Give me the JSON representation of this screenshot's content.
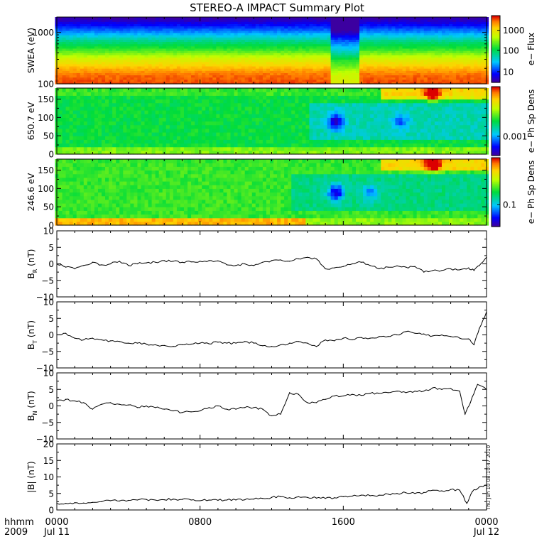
{
  "title": "STEREO-A IMPACT Summary Plot",
  "stamp": "Thu Jun 10 08:10:47 2010",
  "time_axis": {
    "corner_top": "hhmm",
    "corner_bottom": "2009",
    "ticks": [
      {
        "hhmm": "0000",
        "date": "Jul 11",
        "hours": 0
      },
      {
        "hhmm": "0800",
        "date": "",
        "hours": 8
      },
      {
        "hhmm": "1600",
        "date": "",
        "hours": 16
      },
      {
        "hhmm": "0000",
        "date": "Jul 12",
        "hours": 24
      }
    ]
  },
  "panels": {
    "swea": {
      "ylabel": "SWEA (eV)",
      "yticks": [
        "1000",
        "100"
      ],
      "cbar_label": "e− Flux",
      "cbar_ticks": [
        "1000",
        "100",
        "10"
      ]
    },
    "pad1": {
      "ylabel": "650.7 eV",
      "yticks": [
        "150",
        "100",
        "50",
        "0"
      ],
      "cbar_label": "e− Ph Sp Dens",
      "cbar_ticks": [
        "0.001"
      ]
    },
    "pad2": {
      "ylabel": "246.6 eV",
      "yticks": [
        "150",
        "100",
        "50",
        "0"
      ],
      "cbar_label": "e− Ph Sp Dens",
      "cbar_ticks": [
        "0.1"
      ]
    },
    "br": {
      "ylabel_main": "B",
      "ylabel_sub": "R",
      "ylabel_unit": " (nT)",
      "yticks": [
        "10",
        "5",
        "0",
        "−5",
        "−10"
      ]
    },
    "bt": {
      "ylabel_main": "B",
      "ylabel_sub": "T",
      "ylabel_unit": " (nT)",
      "yticks": [
        "10",
        "5",
        "0",
        "−5",
        "−10"
      ]
    },
    "bn": {
      "ylabel_main": "B",
      "ylabel_sub": "N",
      "ylabel_unit": " (nT)",
      "yticks": [
        "10",
        "5",
        "0",
        "−5",
        "−10"
      ]
    },
    "bmag": {
      "ylabel": "|B| (nT)",
      "yticks": [
        "20",
        "15",
        "10",
        "5",
        "0"
      ]
    }
  },
  "chart_data": [
    {
      "type": "heatmap",
      "name": "SWEA electron flux spectrogram",
      "xlabel": "",
      "ylabel": "SWEA (eV)",
      "ylim": [
        100,
        2000
      ],
      "yscale": "log",
      "colorbar": {
        "label": "e− Flux",
        "scale": "log",
        "range": [
          3,
          3000
        ]
      },
      "band_levels": [
        [
          100,
          2200
        ],
        [
          150,
          1800
        ],
        [
          200,
          1100
        ],
        [
          300,
          500
        ],
        [
          450,
          150
        ],
        [
          700,
          55
        ],
        [
          1000,
          18
        ],
        [
          1500,
          6
        ],
        [
          2000,
          3
        ]
      ],
      "features": [
        {
          "t_start": 15.3,
          "t_end": 16.8,
          "note": "flux dip"
        }
      ]
    },
    {
      "type": "heatmap",
      "name": "Pitch angle distribution 650.7 eV",
      "ylabel": "650.7 eV",
      "ylim": [
        0,
        180
      ],
      "colorbar": {
        "label": "e− Ph Sp Dens",
        "scale": "log",
        "ticks": [
          "0.001"
        ]
      },
      "features": [
        {
          "t": 15.6,
          "pa": 90,
          "level": "min"
        },
        {
          "t": 19.2,
          "pa": 90,
          "level": "low"
        },
        {
          "t": 21.0,
          "pa": 170,
          "level": "max"
        }
      ]
    },
    {
      "type": "heatmap",
      "name": "Pitch angle distribution 246.6 eV",
      "ylabel": "246.6 eV",
      "ylim": [
        0,
        180
      ],
      "colorbar": {
        "label": "e− Ph Sp Dens",
        "scale": "log",
        "ticks": [
          "0.1"
        ]
      },
      "features": [
        {
          "t": 15.6,
          "pa": 90,
          "level": "min"
        },
        {
          "t": 17.5,
          "pa": 90,
          "level": "low"
        },
        {
          "t": 21.0,
          "pa": 170,
          "level": "max"
        }
      ]
    },
    {
      "type": "line",
      "name": "B_R",
      "ylabel": "B_R (nT)",
      "ylim": [
        -10,
        10
      ],
      "xlim": [
        0,
        24
      ],
      "x": [
        0,
        0.5,
        1,
        1.5,
        2,
        2.5,
        3,
        3.5,
        4,
        4.5,
        5,
        5.5,
        6,
        6.5,
        7,
        7.5,
        8,
        8.5,
        9,
        9.5,
        10,
        10.5,
        11,
        11.5,
        12,
        12.5,
        13,
        13.5,
        14,
        14.5,
        15,
        15.5,
        16,
        16.5,
        17,
        17.5,
        18,
        18.5,
        19,
        19.5,
        20,
        20.5,
        21,
        21.5,
        22,
        22.5,
        23,
        23.3,
        23.6,
        24
      ],
      "y": [
        0,
        -1,
        -1.5,
        -0.5,
        0.5,
        -0.3,
        0,
        0.8,
        -0.5,
        0,
        0.3,
        0.5,
        1,
        0.8,
        0.5,
        0.6,
        0.8,
        1,
        0.9,
        -0.3,
        -0.5,
        0,
        -0.5,
        0.5,
        1,
        1.2,
        0.8,
        1.5,
        2,
        1.5,
        -1.5,
        -1.2,
        -0.8,
        0,
        0.5,
        -0.5,
        -1.5,
        -1,
        -0.6,
        -1,
        -0.8,
        -2.5,
        -2,
        -2,
        -1.5,
        -1.8,
        -1.2,
        -2,
        -0.5,
        2
      ]
    },
    {
      "type": "line",
      "name": "B_T",
      "ylabel": "B_T (nT)",
      "ylim": [
        -10,
        10
      ],
      "xlim": [
        0,
        24
      ],
      "x": [
        0,
        0.5,
        1,
        1.5,
        2,
        2.5,
        3,
        3.5,
        4,
        4.5,
        5,
        5.5,
        6,
        6.5,
        7,
        7.5,
        8,
        8.5,
        9,
        9.5,
        10,
        10.5,
        11,
        11.5,
        12,
        12.5,
        13,
        13.5,
        14,
        14.5,
        15,
        15.5,
        16,
        16.5,
        17,
        17.5,
        18,
        18.5,
        19,
        19.5,
        20,
        20.5,
        21,
        21.5,
        22,
        22.5,
        23,
        23.3,
        23.6,
        24
      ],
      "y": [
        0,
        0.5,
        -1,
        -1.5,
        -1,
        -1.5,
        -1.8,
        -2,
        -2.5,
        -2.5,
        -2.8,
        -3,
        -3.2,
        -3.5,
        -3,
        -2.8,
        -2.5,
        -2.7,
        -2.2,
        -2.5,
        -2.5,
        -2,
        -2.5,
        -3.3,
        -3.5,
        -3,
        -2.5,
        -2,
        -2.5,
        -3.5,
        -1.5,
        -1.8,
        -1,
        -1.5,
        -0.8,
        -1,
        -0.5,
        -0.5,
        0,
        1,
        0.5,
        0.3,
        -0.3,
        0,
        -0.5,
        -1,
        -1.2,
        -3,
        2,
        7
      ]
    },
    {
      "type": "line",
      "name": "B_N",
      "ylabel": "B_N (nT)",
      "ylim": [
        -10,
        10
      ],
      "xlim": [
        0,
        24
      ],
      "x": [
        0,
        0.5,
        1,
        1.5,
        2,
        2.5,
        3,
        3.5,
        4,
        4.5,
        5,
        5.5,
        6,
        6.5,
        7,
        7.5,
        8,
        8.5,
        9,
        9.5,
        10,
        10.5,
        11,
        11.5,
        12,
        12.5,
        13,
        13.5,
        14,
        14.5,
        15,
        15.5,
        16,
        16.5,
        17,
        17.5,
        18,
        18.5,
        19,
        19.5,
        20,
        20.5,
        21,
        21.5,
        22,
        22.5,
        22.8,
        23.1,
        23.5,
        24
      ],
      "y": [
        1.5,
        2,
        1.5,
        1,
        -1,
        0.5,
        1,
        0.5,
        0.3,
        -0.5,
        0,
        -0.5,
        -1,
        -1.5,
        -2,
        -1.8,
        -1.5,
        -0.5,
        0,
        -1,
        -1,
        -0.5,
        -0.5,
        -1,
        -3,
        -2.5,
        4,
        3.5,
        1,
        1,
        2,
        3,
        3,
        3.5,
        3.2,
        3.8,
        3.8,
        4,
        4.5,
        4,
        4.5,
        4.5,
        5.5,
        5,
        5.3,
        4.5,
        -2.5,
        1,
        6.5,
        5
      ]
    },
    {
      "type": "line",
      "name": "|B|",
      "ylabel": "|B| (nT)",
      "ylim": [
        0,
        20
      ],
      "xlim": [
        0,
        24
      ],
      "x": [
        0,
        0.5,
        1,
        1.5,
        2,
        2.5,
        3,
        3.5,
        4,
        4.5,
        5,
        5.5,
        6,
        6.5,
        7,
        7.5,
        8,
        8.5,
        9,
        9.5,
        10,
        10.5,
        11,
        11.5,
        12,
        12.5,
        13,
        13.5,
        14,
        14.5,
        15,
        15.5,
        16,
        16.5,
        17,
        17.5,
        18,
        18.5,
        19,
        19.5,
        20,
        20.5,
        21,
        21.5,
        22,
        22.5,
        22.9,
        23.2,
        23.6,
        24
      ],
      "y": [
        2,
        2,
        2.2,
        2.1,
        2.3,
        2.5,
        2.8,
        2.7,
        2.9,
        3,
        3.2,
        3,
        3.1,
        3.3,
        3.2,
        3,
        2.8,
        3,
        2.9,
        3,
        3,
        3.1,
        3.3,
        3.5,
        3.8,
        4,
        3.7,
        4,
        3.8,
        3.6,
        3.5,
        3.7,
        4,
        4.2,
        4.5,
        4.3,
        4.5,
        4.8,
        5,
        5.2,
        5,
        5.3,
        6,
        5.8,
        6.2,
        6,
        2,
        5.5,
        7,
        7.5
      ]
    }
  ]
}
